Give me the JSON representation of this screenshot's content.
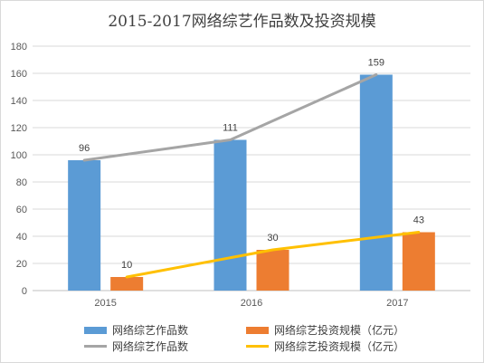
{
  "chart_data": {
    "type": "bar",
    "title": "2015-2017网络综艺作品数及投资规模",
    "categories": [
      "2015",
      "2016",
      "2017"
    ],
    "ylim": [
      0,
      180
    ],
    "yticks": [
      0,
      20,
      40,
      60,
      80,
      100,
      120,
      140,
      160,
      180
    ],
    "grid": true,
    "legend_position": "bottom",
    "series": [
      {
        "name": "网络综艺作品数",
        "kind": "bar",
        "color": "#5b9bd5",
        "values": [
          96,
          111,
          159
        ]
      },
      {
        "name": "网络综艺投资规模（亿元）",
        "kind": "bar",
        "color": "#ed7d31",
        "values": [
          10,
          30,
          43
        ]
      },
      {
        "name": "网络综艺作品数",
        "kind": "line",
        "color": "#a5a5a5",
        "values": [
          96,
          111,
          159
        ]
      },
      {
        "name": "网络综艺投资规模（亿元）",
        "kind": "line",
        "color": "#ffc000",
        "values": [
          10,
          30,
          43
        ]
      }
    ]
  }
}
